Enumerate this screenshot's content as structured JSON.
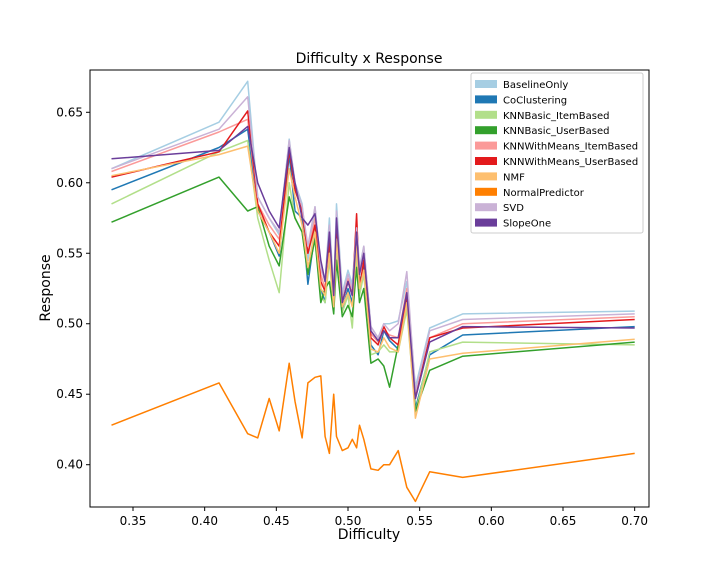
{
  "chart_data": {
    "type": "line",
    "title": "Difficulty x Response",
    "xlabel": "Difficulty",
    "ylabel": "Response",
    "xlim": [
      0.32,
      0.71
    ],
    "ylim": [
      0.37,
      0.68
    ],
    "xticks": [
      0.35,
      0.4,
      0.45,
      0.5,
      0.55,
      0.6,
      0.65,
      0.7
    ],
    "xtick_labels": [
      "0.35",
      "0.40",
      "0.45",
      "0.50",
      "0.55",
      "0.60",
      "0.65",
      "0.70"
    ],
    "yticks": [
      0.4,
      0.45,
      0.5,
      0.55,
      0.6,
      0.65
    ],
    "ytick_labels": [
      "0.40",
      "0.45",
      "0.50",
      "0.55",
      "0.60",
      "0.65"
    ],
    "legend_position": "top-right",
    "x": [
      0.335,
      0.41,
      0.43,
      0.437,
      0.445,
      0.452,
      0.459,
      0.463,
      0.468,
      0.472,
      0.477,
      0.481,
      0.484,
      0.487,
      0.49,
      0.492,
      0.496,
      0.5,
      0.503,
      0.506,
      0.508,
      0.511,
      0.516,
      0.521,
      0.525,
      0.529,
      0.535,
      0.541,
      0.547,
      0.557,
      0.58,
      0.7
    ],
    "series": [
      {
        "name": "BaselineOnly",
        "color": "#a6cee3",
        "values": [
          0.61,
          0.643,
          0.672,
          0.59,
          0.575,
          0.563,
          0.631,
          0.6,
          0.585,
          0.545,
          0.583,
          0.54,
          0.53,
          0.575,
          0.52,
          0.585,
          0.522,
          0.538,
          0.528,
          0.57,
          0.54,
          0.555,
          0.498,
          0.49,
          0.5,
          0.5,
          0.502,
          0.53,
          0.455,
          0.497,
          0.507,
          0.509
        ]
      },
      {
        "name": "CoClustering",
        "color": "#1f78b4",
        "values": [
          0.595,
          0.625,
          0.638,
          0.58,
          0.565,
          0.548,
          0.62,
          0.58,
          0.575,
          0.528,
          0.565,
          0.525,
          0.515,
          0.555,
          0.51,
          0.565,
          0.51,
          0.525,
          0.515,
          0.56,
          0.53,
          0.54,
          0.485,
          0.478,
          0.495,
          0.488,
          0.482,
          0.515,
          0.44,
          0.478,
          0.492,
          0.498
        ]
      },
      {
        "name": "KNNBasic_ItemBased",
        "color": "#b2df8a",
        "values": [
          0.585,
          0.622,
          0.63,
          0.575,
          0.545,
          0.522,
          0.6,
          0.575,
          0.565,
          0.535,
          0.57,
          0.52,
          0.515,
          0.545,
          0.51,
          0.55,
          0.508,
          0.52,
          0.497,
          0.548,
          0.52,
          0.535,
          0.478,
          0.48,
          0.485,
          0.48,
          0.48,
          0.51,
          0.437,
          0.48,
          0.487,
          0.485
        ]
      },
      {
        "name": "KNNBasic_UserBased",
        "color": "#33a02c",
        "values": [
          0.572,
          0.604,
          0.58,
          0.583,
          0.555,
          0.541,
          0.59,
          0.575,
          0.565,
          0.535,
          0.56,
          0.515,
          0.525,
          0.53,
          0.507,
          0.545,
          0.505,
          0.513,
          0.505,
          0.54,
          0.515,
          0.525,
          0.472,
          0.475,
          0.47,
          0.455,
          0.485,
          0.52,
          0.438,
          0.467,
          0.477,
          0.487
        ]
      },
      {
        "name": "KNNWithMeans_ItemBased",
        "color": "#fb9a99",
        "values": [
          0.608,
          0.636,
          0.645,
          0.585,
          0.57,
          0.56,
          0.625,
          0.595,
          0.58,
          0.55,
          0.575,
          0.535,
          0.525,
          0.565,
          0.52,
          0.575,
          0.518,
          0.532,
          0.523,
          0.565,
          0.535,
          0.548,
          0.493,
          0.487,
          0.495,
          0.492,
          0.49,
          0.525,
          0.45,
          0.49,
          0.5,
          0.505
        ]
      },
      {
        "name": "KNNWithMeans_UserBased",
        "color": "#e31a1c",
        "values": [
          0.604,
          0.622,
          0.651,
          0.585,
          0.565,
          0.555,
          0.623,
          0.595,
          0.58,
          0.55,
          0.57,
          0.53,
          0.523,
          0.56,
          0.515,
          0.57,
          0.515,
          0.53,
          0.52,
          0.578,
          0.525,
          0.545,
          0.49,
          0.485,
          0.498,
          0.49,
          0.485,
          0.52,
          0.447,
          0.49,
          0.497,
          0.503
        ]
      },
      {
        "name": "NMF",
        "color": "#fdbf6f",
        "values": [
          0.605,
          0.62,
          0.626,
          0.58,
          0.565,
          0.55,
          0.61,
          0.59,
          0.57,
          0.54,
          0.565,
          0.525,
          0.52,
          0.55,
          0.512,
          0.56,
          0.512,
          0.522,
          0.512,
          0.555,
          0.525,
          0.538,
          0.482,
          0.48,
          0.49,
          0.483,
          0.48,
          0.515,
          0.433,
          0.475,
          0.479,
          0.489
        ]
      },
      {
        "name": "NormalPredictor",
        "color": "#ff7f00",
        "values": [
          0.428,
          0.458,
          0.422,
          0.419,
          0.447,
          0.424,
          0.472,
          0.445,
          0.419,
          0.458,
          0.462,
          0.463,
          0.42,
          0.408,
          0.45,
          0.42,
          0.41,
          0.412,
          0.418,
          0.412,
          0.428,
          0.418,
          0.397,
          0.396,
          0.4,
          0.4,
          0.41,
          0.384,
          0.374,
          0.395,
          0.391,
          0.408
        ]
      },
      {
        "name": "SVD",
        "color": "#cab2d6",
        "values": [
          0.61,
          0.638,
          0.661,
          0.59,
          0.575,
          0.565,
          0.63,
          0.6,
          0.583,
          0.555,
          0.583,
          0.54,
          0.53,
          0.57,
          0.52,
          0.58,
          0.52,
          0.535,
          0.525,
          0.568,
          0.538,
          0.555,
          0.498,
          0.49,
          0.5,
          0.495,
          0.5,
          0.537,
          0.452,
          0.495,
          0.503,
          0.507
        ]
      },
      {
        "name": "SlopeOne",
        "color": "#6a3d9a",
        "values": [
          0.617,
          0.623,
          0.64,
          0.6,
          0.58,
          0.568,
          0.625,
          0.6,
          0.575,
          0.57,
          0.578,
          0.545,
          0.53,
          0.565,
          0.52,
          0.575,
          0.515,
          0.53,
          0.52,
          0.565,
          0.535,
          0.55,
          0.495,
          0.488,
          0.495,
          0.49,
          0.49,
          0.522,
          0.447,
          0.487,
          0.498,
          0.497
        ]
      }
    ]
  }
}
